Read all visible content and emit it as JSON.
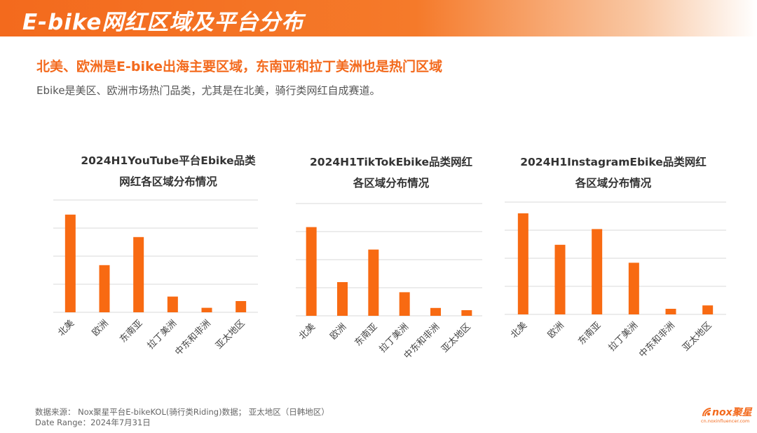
{
  "header": {
    "title": "E-bike网红区域及平台分布"
  },
  "headline": "北美、欧洲是E-bike出海主要区域，东南亚和拉丁美洲也是热门区域",
  "subline": "Ebike是美区、欧洲市场热门品类，尤其是在北美，骑行类网红自成赛道。",
  "footer": {
    "source": "数据来源： Nox聚星平台E-bikeKOL(骑行类Riding)数据； 亚太地区（日韩地区）",
    "date_range": "Date Range：2024年7月31日"
  },
  "logo": {
    "name": "nox聚星",
    "url": "cn.noxinfluencer.com"
  },
  "colors": {
    "accent": "#f36a1d",
    "bar": "#f86a12",
    "grid": "#d9d9d9"
  },
  "chart_data": [
    {
      "type": "bar",
      "title_lines": [
        "2024H1YouTube平台Ebike品类",
        "网红各区域分布情况"
      ],
      "categories": [
        "北美",
        "欧洲",
        "东南亚",
        "拉丁美洲",
        "中东和非洲",
        "亚太地区"
      ],
      "values": [
        87,
        42,
        67,
        14,
        4,
        10
      ],
      "ylim": [
        0,
        100
      ],
      "grid": true
    },
    {
      "type": "bar",
      "title_lines": [
        "2024H1TikTokEbike品类网红",
        "各区域分布情况"
      ],
      "categories": [
        "北美",
        "欧洲",
        "东南亚",
        "拉丁美洲",
        "中东和非洲",
        "亚太地区"
      ],
      "values": [
        79,
        30,
        59,
        21,
        7,
        5
      ],
      "ylim": [
        0,
        100
      ],
      "grid": true
    },
    {
      "type": "bar",
      "title_lines": [
        "2024H1InstagramEbike品类网红",
        "各区域分布情况"
      ],
      "categories": [
        "北美",
        "欧洲",
        "东南亚",
        "拉丁美洲",
        "中东和非洲",
        "亚太地区"
      ],
      "values": [
        90,
        62,
        76,
        46,
        5,
        8
      ],
      "ylim": [
        0,
        100
      ],
      "grid": true
    }
  ]
}
